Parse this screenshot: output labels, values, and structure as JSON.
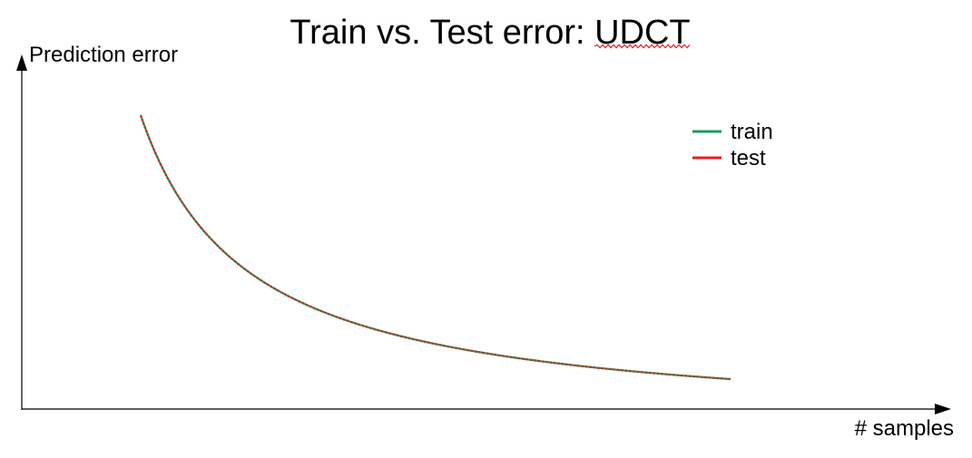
{
  "chart_data": {
    "type": "line",
    "title_prefix": "Train vs. Test error: ",
    "title_highlight": "UDCT",
    "title_highlight_misspelled": true,
    "xlabel": "# samples",
    "ylabel": "Prediction error",
    "x_ticks": false,
    "y_ticks": false,
    "grid": false,
    "legend_position": "top-right",
    "curve_shape": "decaying hyperbola",
    "series": [
      {
        "name": "train",
        "color": "#1a9a5a",
        "line": "solid"
      },
      {
        "name": "test",
        "color": "#e02020",
        "line": "dashed",
        "overlaps": "train"
      }
    ],
    "spellcheck_underline_color": "#e02020"
  }
}
